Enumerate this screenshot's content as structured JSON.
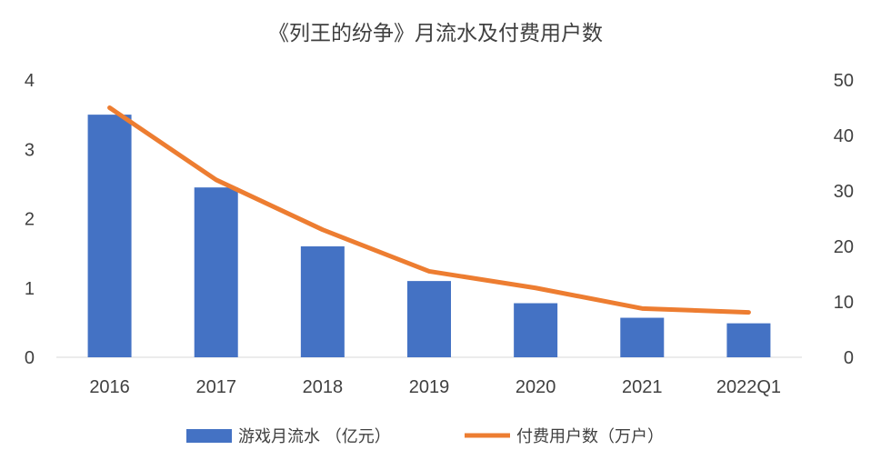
{
  "chart_data": {
    "type": "bar",
    "title": "《列王的纷争》月流水及付费用户数",
    "categories": [
      "2016",
      "2017",
      "2018",
      "2019",
      "2020",
      "2021",
      "2022Q1"
    ],
    "series": [
      {
        "name": "游戏月流水 （亿元）",
        "type": "bar",
        "axis": "left",
        "color": "#4472c4",
        "values": [
          3.5,
          2.45,
          1.6,
          1.1,
          0.78,
          0.57,
          0.49
        ]
      },
      {
        "name": "付费用户数（万户）",
        "type": "line",
        "axis": "right",
        "color": "#ed7d31",
        "values": [
          45,
          32,
          23,
          15.5,
          12.5,
          8.8,
          8.1
        ]
      }
    ],
    "y_left": {
      "ylim": [
        0,
        4
      ],
      "ticks": [
        "0",
        "1",
        "2",
        "3",
        "4"
      ]
    },
    "y_right": {
      "ylim": [
        0,
        50
      ],
      "ticks": [
        "0",
        "10",
        "20",
        "30",
        "40",
        "50"
      ]
    },
    "grid": false,
    "legend": "bottom"
  }
}
